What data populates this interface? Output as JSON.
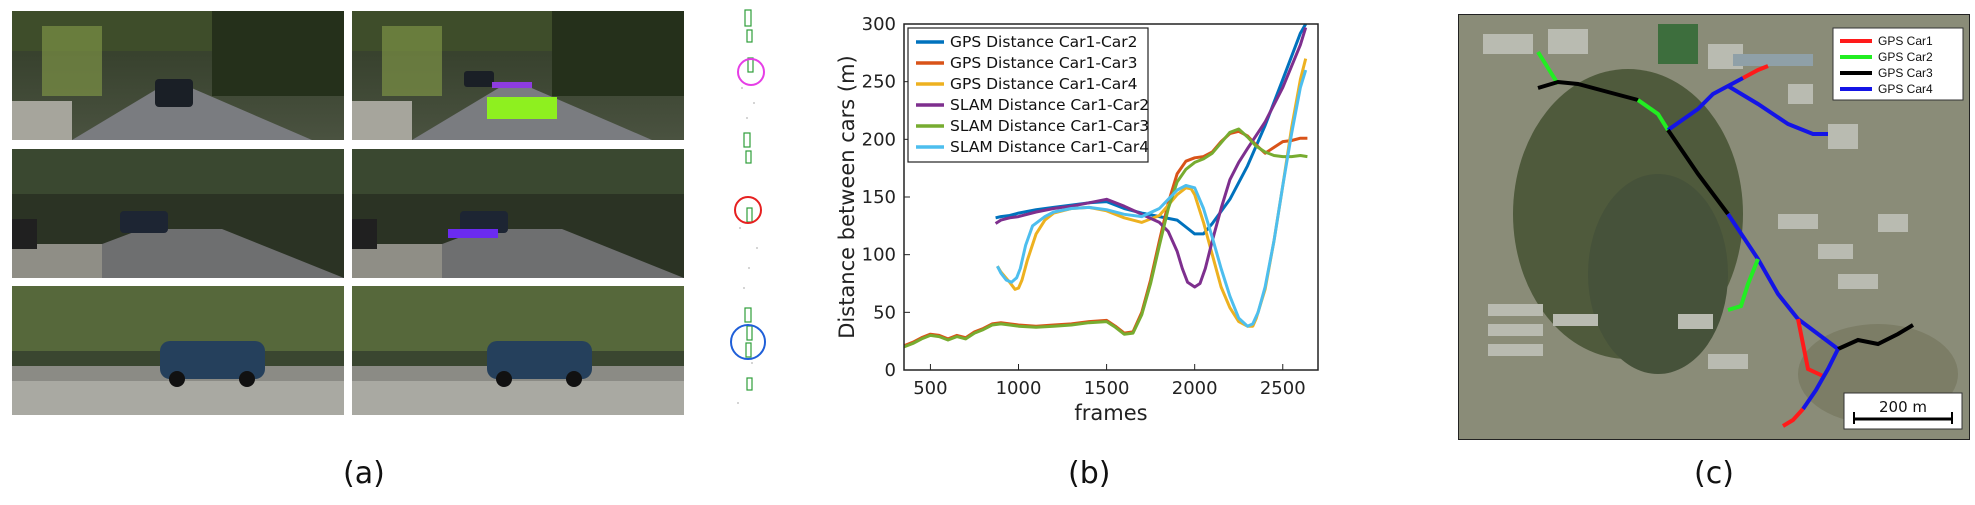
{
  "captions": {
    "a": "(a)",
    "b": "(b)",
    "c": "(c)"
  },
  "chart_data": {
    "type": "line",
    "title": "",
    "xlabel": "frames",
    "ylabel": "Distance between cars (m)",
    "xlim": [
      350,
      2700
    ],
    "ylim": [
      0,
      300
    ],
    "xticks": [
      500,
      1000,
      1500,
      2000,
      2500
    ],
    "yticks": [
      0,
      50,
      100,
      150,
      200,
      250,
      300
    ],
    "grid": false,
    "legend_position": "top-left",
    "series": [
      {
        "name": "GPS Distance Car1-Car2",
        "color": "#0072BD",
        "x": [
          870,
          900,
          950,
          1000,
          1100,
          1200,
          1300,
          1400,
          1500,
          1600,
          1700,
          1800,
          1900,
          1950,
          2000,
          2050,
          2100,
          2200,
          2300,
          2400,
          2500,
          2600,
          2630
        ],
        "y": [
          132,
          133,
          134,
          136,
          139,
          141,
          143,
          145,
          146,
          140,
          136,
          133,
          130,
          124,
          118,
          118,
          127,
          148,
          177,
          212,
          252,
          292,
          300
        ]
      },
      {
        "name": "GPS Distance Car1-Car3",
        "color": "#D95319",
        "x": [
          350,
          400,
          450,
          500,
          550,
          600,
          650,
          700,
          750,
          800,
          850,
          900,
          950,
          1000,
          1100,
          1200,
          1300,
          1400,
          1500,
          1550,
          1600,
          1650,
          1700,
          1750,
          1800,
          1850,
          1900,
          1950,
          2000,
          2050,
          2100,
          2150,
          2200,
          2250,
          2300,
          2350,
          2400,
          2450,
          2500,
          2550,
          2600,
          2640
        ],
        "y": [
          21,
          24,
          28,
          31,
          30,
          27,
          30,
          28,
          33,
          36,
          40,
          41,
          40,
          39,
          38,
          39,
          40,
          42,
          43,
          38,
          32,
          33,
          50,
          78,
          112,
          145,
          170,
          181,
          184,
          185,
          189,
          198,
          205,
          207,
          203,
          195,
          188,
          193,
          198,
          199,
          201,
          201
        ]
      },
      {
        "name": "GPS Distance Car1-Car4",
        "color": "#EDB120",
        "x": [
          880,
          900,
          950,
          980,
          1000,
          1020,
          1050,
          1100,
          1150,
          1200,
          1300,
          1400,
          1500,
          1600,
          1700,
          1800,
          1850,
          1900,
          1950,
          1980,
          2000,
          2050,
          2100,
          2150,
          2200,
          2250,
          2300,
          2330,
          2350,
          2400,
          2450,
          2500,
          2550,
          2600,
          2630
        ],
        "y": [
          90,
          85,
          76,
          70,
          71,
          78,
          95,
          118,
          130,
          136,
          140,
          141,
          138,
          132,
          128,
          134,
          143,
          152,
          158,
          157,
          152,
          128,
          100,
          72,
          54,
          42,
          38,
          38,
          45,
          70,
          112,
          160,
          210,
          252,
          270
        ]
      },
      {
        "name": "SLAM Distance Car1-Car2",
        "color": "#7E2F8E",
        "x": [
          870,
          900,
          950,
          1000,
          1100,
          1200,
          1300,
          1400,
          1500,
          1600,
          1700,
          1800,
          1850,
          1900,
          1930,
          1960,
          2000,
          2030,
          2060,
          2100,
          2150,
          2200,
          2250,
          2300,
          2400,
          2500,
          2600,
          2630
        ],
        "y": [
          127,
          130,
          132,
          133,
          137,
          140,
          142,
          145,
          148,
          142,
          135,
          128,
          120,
          103,
          88,
          76,
          72,
          75,
          88,
          112,
          140,
          165,
          180,
          192,
          215,
          245,
          282,
          297
        ]
      },
      {
        "name": "SLAM Distance Car1-Car3",
        "color": "#77AC30",
        "x": [
          350,
          400,
          450,
          500,
          550,
          600,
          650,
          700,
          750,
          800,
          850,
          900,
          950,
          1000,
          1100,
          1200,
          1300,
          1400,
          1500,
          1550,
          1600,
          1650,
          1700,
          1750,
          1800,
          1850,
          1900,
          1950,
          2000,
          2050,
          2100,
          2150,
          2200,
          2250,
          2300,
          2350,
          2400,
          2450,
          2500,
          2550,
          2600,
          2640
        ],
        "y": [
          20,
          23,
          27,
          30,
          29,
          26,
          29,
          27,
          32,
          35,
          39,
          40,
          39,
          38,
          37,
          38,
          39,
          41,
          42,
          37,
          31,
          32,
          48,
          75,
          108,
          140,
          163,
          174,
          180,
          183,
          188,
          197,
          206,
          209,
          202,
          194,
          189,
          186,
          185,
          185,
          186,
          185
        ]
      },
      {
        "name": "SLAM Distance Car1-Car4",
        "color": "#4DBEEE",
        "x": [
          880,
          900,
          930,
          960,
          990,
          1010,
          1040,
          1080,
          1150,
          1200,
          1300,
          1400,
          1500,
          1600,
          1700,
          1800,
          1850,
          1900,
          1950,
          2000,
          2050,
          2100,
          2150,
          2200,
          2250,
          2300,
          2330,
          2360,
          2400,
          2450,
          2500,
          2550,
          2600,
          2630
        ],
        "y": [
          90,
          84,
          78,
          76,
          80,
          88,
          108,
          125,
          133,
          137,
          140,
          141,
          139,
          135,
          133,
          140,
          148,
          156,
          160,
          158,
          140,
          115,
          88,
          64,
          45,
          38,
          40,
          50,
          72,
          112,
          160,
          205,
          245,
          260
        ]
      }
    ]
  },
  "map": {
    "legend": [
      {
        "label": "GPS Car1",
        "color": "#ff1a1a"
      },
      {
        "label": "GPS Car2",
        "color": "#22ee22"
      },
      {
        "label": "GPS Car3",
        "color": "#000000"
      },
      {
        "label": "GPS Car4",
        "color": "#1414e6"
      }
    ],
    "scale_label": "200 m"
  },
  "marker_colors": {
    "ring_top": "#e63ee6",
    "ring_middle": "#e62020",
    "ring_bottom": "#1f5fd8",
    "box_green": "#8ef01f",
    "box_purple": "#6b2bf0"
  }
}
